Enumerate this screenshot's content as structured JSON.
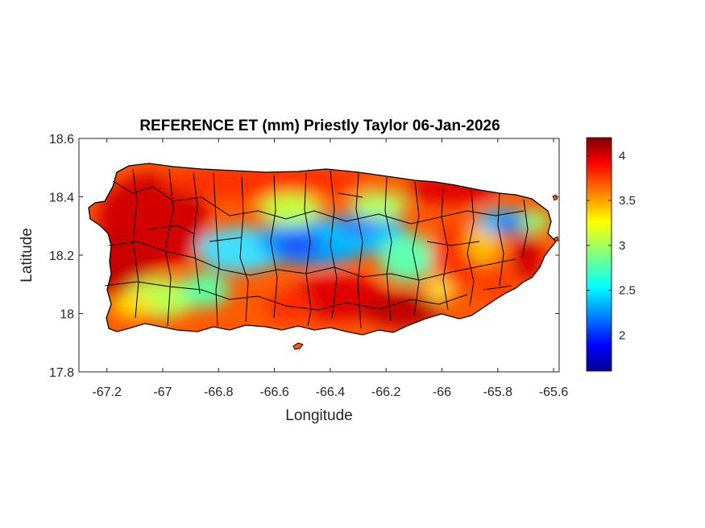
{
  "map": {
    "title": "REFERENCE ET (mm) Priestly Taylor 06-Jan-2026",
    "xlabel": "Longitude",
    "ylabel": "Latitude",
    "xlim": [
      -67.3,
      -65.58
    ],
    "ylim": [
      17.8,
      18.6
    ],
    "x_ticks": [
      -67.2,
      -67,
      -66.8,
      -66.6,
      -66.4,
      -66.2,
      -66,
      -65.8,
      -65.6
    ],
    "x_tick_labels": [
      "-67.2",
      "-67",
      "-66.8",
      "-66.6",
      "-66.4",
      "-66.2",
      "-66",
      "-65.8",
      "-65.6"
    ],
    "y_ticks": [
      17.8,
      18,
      18.2,
      18.4,
      18.6
    ],
    "y_tick_labels": [
      "17.8",
      "18",
      "18.2",
      "18.4",
      "18.6"
    ],
    "region": "Puerto Rico",
    "colormap": "jet",
    "colorbar": {
      "range": [
        1.6,
        4.2
      ],
      "ticks": [
        2,
        2.5,
        3,
        3.5,
        4
      ],
      "tick_labels": [
        "2",
        "2.5",
        "3",
        "3.5",
        "4"
      ],
      "low_color": "#00008f",
      "high_color": "#800000"
    },
    "field_summary": {
      "coasts_and_south": "high (about 3.8-4.2 mm)",
      "central_mountains": "low (about 2-2.8 mm)",
      "northeast_minimum": "about 1.8 mm"
    }
  }
}
